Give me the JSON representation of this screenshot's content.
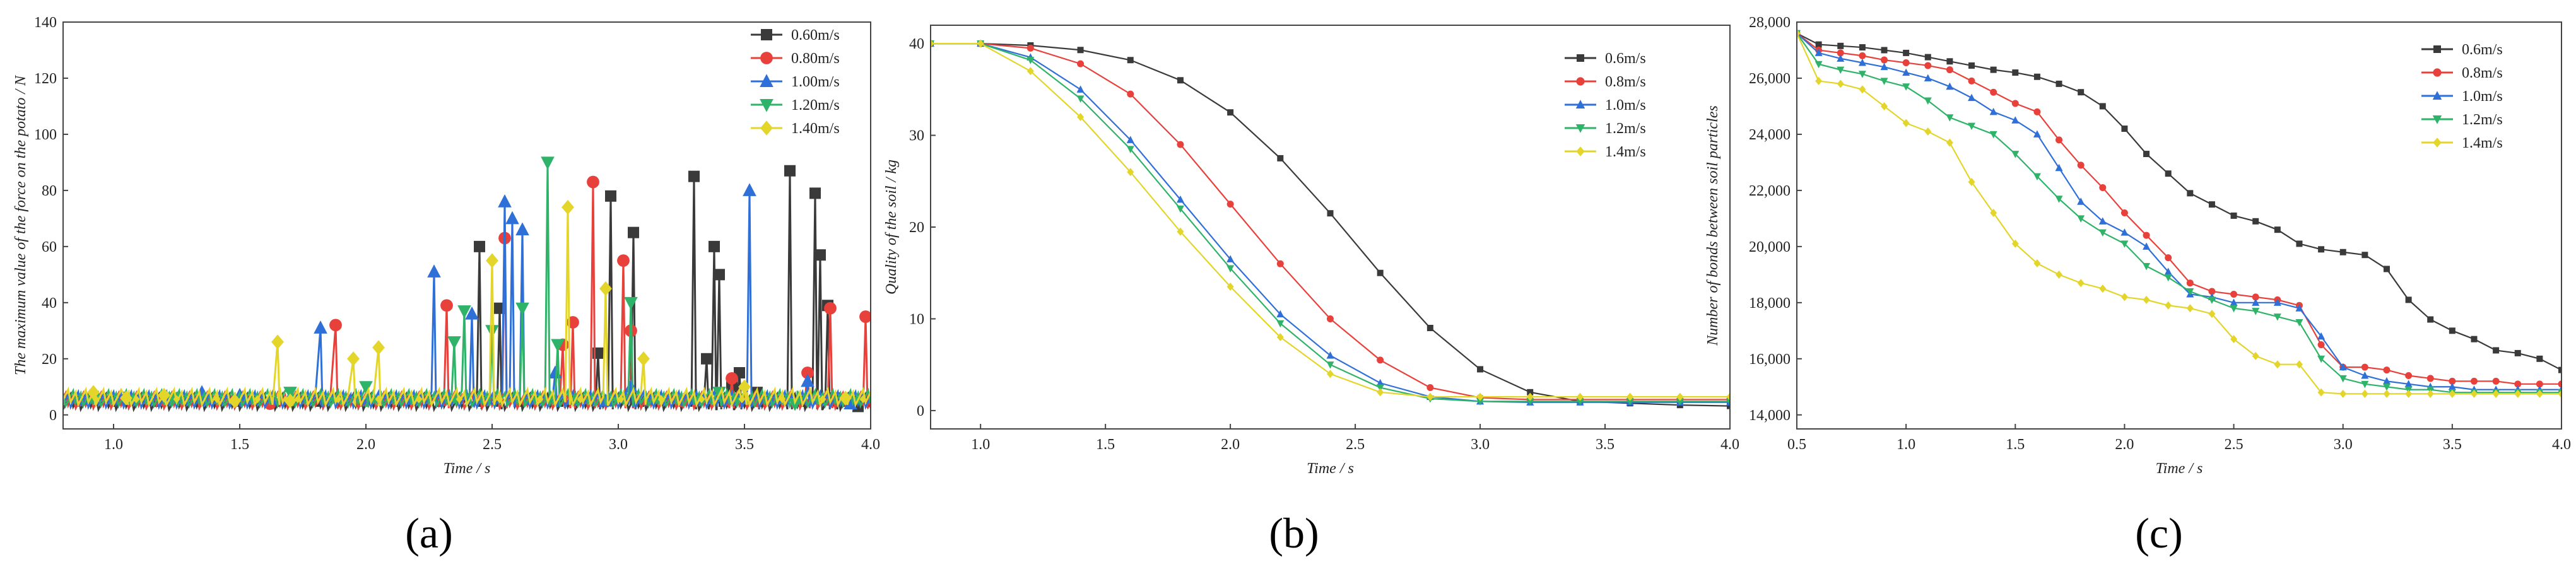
{
  "chart_data": [
    {
      "type": "line",
      "panel_label": "(a)",
      "xlabel": "Time / s",
      "ylabel": "The maximum value of the force on the potato / N",
      "xlim": [
        0.8,
        4.0
      ],
      "ylim": [
        -5,
        140
      ],
      "xticks": [
        1.0,
        1.5,
        2.0,
        2.5,
        3.0,
        3.5,
        4.0
      ],
      "yticks": [
        0,
        20,
        40,
        60,
        80,
        100,
        120,
        140
      ],
      "grid": false,
      "legend_position": "top-right",
      "series": [
        {
          "name": "0.60m/s",
          "color": "#3a3a3a",
          "marker": "square",
          "peaks": [
            [
              2.45,
              60
            ],
            [
              2.53,
              38
            ],
            [
              2.92,
              22
            ],
            [
              2.97,
              78
            ],
            [
              3.06,
              65
            ],
            [
              3.3,
              85
            ],
            [
              3.35,
              20
            ],
            [
              3.38,
              60
            ],
            [
              3.4,
              50
            ],
            [
              3.45,
              10
            ],
            [
              3.48,
              15
            ],
            [
              3.55,
              8
            ],
            [
              3.68,
              87
            ],
            [
              3.78,
              79
            ],
            [
              3.8,
              57
            ],
            [
              3.83,
              39
            ],
            [
              3.86,
              6
            ],
            [
              3.95,
              3
            ]
          ]
        },
        {
          "name": "0.80m/s",
          "color": "#e8403a",
          "marker": "circle",
          "peaks": [
            [
              1.62,
              4
            ],
            [
              1.88,
              32
            ],
            [
              2.32,
              39
            ],
            [
              2.55,
              63
            ],
            [
              2.78,
              25
            ],
            [
              2.82,
              33
            ],
            [
              2.9,
              83
            ],
            [
              3.02,
              55
            ],
            [
              3.05,
              30
            ],
            [
              3.25,
              5
            ],
            [
              3.45,
              13
            ],
            [
              3.55,
              5
            ],
            [
              3.75,
              15
            ],
            [
              3.84,
              38
            ],
            [
              3.98,
              35
            ]
          ]
        },
        {
          "name": "1.00m/s",
          "color": "#2f6fd8",
          "marker": "triangle-up",
          "peaks": [
            [
              1.35,
              8
            ],
            [
              1.5,
              7
            ],
            [
              1.82,
              31
            ],
            [
              2.27,
              51
            ],
            [
              2.42,
              36
            ],
            [
              2.55,
              76
            ],
            [
              2.58,
              70
            ],
            [
              2.62,
              66
            ],
            [
              2.75,
              15
            ],
            [
              2.95,
              5
            ],
            [
              3.05,
              10
            ],
            [
              3.52,
              80
            ],
            [
              3.75,
              12
            ],
            [
              3.92,
              4
            ]
          ]
        },
        {
          "name": "1.20m/s",
          "color": "#2eb369",
          "marker": "triangle-down",
          "peaks": [
            [
              1.25,
              6
            ],
            [
              1.7,
              8
            ],
            [
              2.0,
              10
            ],
            [
              2.35,
              26
            ],
            [
              2.39,
              37
            ],
            [
              2.5,
              30
            ],
            [
              2.62,
              38
            ],
            [
              2.72,
              90
            ],
            [
              2.76,
              25
            ],
            [
              3.05,
              40
            ],
            [
              3.4,
              8
            ],
            [
              3.7,
              4
            ]
          ]
        },
        {
          "name": "1.40m/s",
          "color": "#e3d52a",
          "marker": "diamond",
          "peaks": [
            [
              0.92,
              8
            ],
            [
              1.05,
              6
            ],
            [
              1.2,
              7
            ],
            [
              1.48,
              5
            ],
            [
              1.65,
              26
            ],
            [
              1.7,
              5
            ],
            [
              1.95,
              20
            ],
            [
              2.05,
              24
            ],
            [
              2.5,
              55
            ],
            [
              2.8,
              74
            ],
            [
              2.95,
              45
            ],
            [
              3.1,
              20
            ],
            [
              3.5,
              10
            ],
            [
              3.9,
              6
            ]
          ]
        }
      ]
    },
    {
      "type": "line",
      "panel_label": "(b)",
      "xlabel": "Time / s",
      "ylabel": "Quality of the soil / kg",
      "xlim": [
        0.8,
        4.0
      ],
      "ylim": [
        -2,
        42
      ],
      "xticks": [
        1.0,
        1.5,
        2.0,
        2.5,
        3.0,
        3.5,
        4.0
      ],
      "yticks": [
        0,
        10,
        20,
        30,
        40
      ],
      "grid": false,
      "legend_position": "top-right",
      "series": [
        {
          "name": "0.6m/s",
          "color": "#3a3a3a",
          "marker": "square",
          "x": [
            0.8,
            1.0,
            1.2,
            1.4,
            1.6,
            1.8,
            2.0,
            2.2,
            2.4,
            2.6,
            2.8,
            3.0,
            3.2,
            3.4,
            3.6,
            3.8,
            4.0
          ],
          "y": [
            40,
            40,
            39.8,
            39.3,
            38.2,
            36.0,
            32.5,
            27.5,
            21.5,
            15.0,
            9.0,
            4.5,
            2.0,
            1.0,
            0.8,
            0.6,
            0.5
          ]
        },
        {
          "name": "0.8m/s",
          "color": "#e8403a",
          "marker": "circle",
          "x": [
            0.8,
            1.0,
            1.2,
            1.4,
            1.6,
            1.8,
            2.0,
            2.2,
            2.4,
            2.6,
            2.8,
            3.0,
            3.2,
            3.4,
            3.6,
            3.8,
            4.0
          ],
          "y": [
            40,
            40,
            39.5,
            37.8,
            34.5,
            29.0,
            22.5,
            16.0,
            10.0,
            5.5,
            2.5,
            1.4,
            1.2,
            1.2,
            1.2,
            1.2,
            1.2
          ]
        },
        {
          "name": "1.0m/s",
          "color": "#2f6fd8",
          "marker": "triangle-up",
          "x": [
            0.8,
            1.0,
            1.2,
            1.4,
            1.6,
            1.8,
            2.0,
            2.2,
            2.4,
            2.6,
            2.8,
            3.0,
            3.2,
            3.4,
            3.6,
            3.8,
            4.0
          ],
          "y": [
            40,
            40,
            38.5,
            35.0,
            29.5,
            23.0,
            16.5,
            10.5,
            6.0,
            3.0,
            1.5,
            1.0,
            0.9,
            0.9,
            0.9,
            0.9,
            0.9
          ]
        },
        {
          "name": "1.2m/s",
          "color": "#2eb369",
          "marker": "triangle-down",
          "x": [
            0.8,
            1.0,
            1.2,
            1.4,
            1.6,
            1.8,
            2.0,
            2.2,
            2.4,
            2.6,
            2.8,
            3.0,
            3.2,
            3.4,
            3.6,
            3.8,
            4.0
          ],
          "y": [
            40,
            40,
            38.2,
            34.0,
            28.5,
            22.0,
            15.5,
            9.5,
            5.0,
            2.5,
            1.3,
            1.0,
            1.0,
            1.0,
            1.0,
            1.0,
            1.0
          ]
        },
        {
          "name": "1.4m/s",
          "color": "#e3d52a",
          "marker": "diamond",
          "x": [
            0.8,
            1.0,
            1.2,
            1.4,
            1.6,
            1.8,
            2.0,
            2.2,
            2.4,
            2.6,
            2.8,
            3.0,
            3.2,
            3.4,
            3.6,
            3.8,
            4.0
          ],
          "y": [
            40,
            40,
            37.0,
            32.0,
            26.0,
            19.5,
            13.5,
            8.0,
            4.0,
            2.0,
            1.5,
            1.5,
            1.5,
            1.5,
            1.5,
            1.5,
            1.5
          ]
        }
      ]
    },
    {
      "type": "line",
      "panel_label": "(c)",
      "xlabel": "Time / s",
      "ylabel": "Number of bonds between soil particles",
      "xlim": [
        0.5,
        4.0
      ],
      "ylim": [
        13500,
        28000
      ],
      "xticks": [
        0.5,
        1.0,
        1.5,
        2.0,
        2.5,
        3.0,
        3.5,
        4.0
      ],
      "xtick_labels": [
        "0.5",
        "1.0",
        "1.5",
        "2.0",
        "2.5",
        "3.0",
        "3.5",
        "4.0"
      ],
      "yticks": [
        14000,
        16000,
        18000,
        20000,
        22000,
        24000,
        26000,
        28000
      ],
      "ytick_labels": [
        "14,000",
        "16,000",
        "18,000",
        "20,000",
        "22,000",
        "24,000",
        "26,000",
        "28,000"
      ],
      "grid": false,
      "legend_position": "top-right",
      "series": [
        {
          "name": "0.6m/s",
          "color": "#3a3a3a",
          "marker": "square",
          "x": [
            0.5,
            0.6,
            0.7,
            0.8,
            0.9,
            1.0,
            1.1,
            1.2,
            1.3,
            1.4,
            1.5,
            1.6,
            1.7,
            1.8,
            1.9,
            2.0,
            2.1,
            2.2,
            2.3,
            2.4,
            2.5,
            2.6,
            2.7,
            2.8,
            2.9,
            3.0,
            3.1,
            3.2,
            3.3,
            3.4,
            3.5,
            3.6,
            3.7,
            3.8,
            3.9,
            4.0
          ],
          "y": [
            27600,
            27200,
            27150,
            27100,
            27000,
            26900,
            26750,
            26600,
            26450,
            26300,
            26200,
            26050,
            25800,
            25500,
            25000,
            24200,
            23300,
            22600,
            21900,
            21500,
            21100,
            20900,
            20600,
            20100,
            19900,
            19800,
            19700,
            19200,
            18100,
            17400,
            17000,
            16700,
            16300,
            16200,
            16000,
            15600
          ]
        },
        {
          "name": "0.8m/s",
          "color": "#e8403a",
          "marker": "circle",
          "x": [
            0.5,
            0.6,
            0.7,
            0.8,
            0.9,
            1.0,
            1.1,
            1.2,
            1.3,
            1.4,
            1.5,
            1.6,
            1.7,
            1.8,
            1.9,
            2.0,
            2.1,
            2.2,
            2.3,
            2.4,
            2.5,
            2.6,
            2.7,
            2.8,
            2.9,
            3.0,
            3.1,
            3.2,
            3.3,
            3.4,
            3.5,
            3.6,
            3.7,
            3.8,
            3.9,
            4.0
          ],
          "y": [
            27600,
            27000,
            26900,
            26800,
            26650,
            26550,
            26450,
            26300,
            25900,
            25500,
            25100,
            24800,
            23800,
            22900,
            22100,
            21200,
            20400,
            19600,
            18700,
            18400,
            18300,
            18200,
            18100,
            17900,
            16500,
            15700,
            15700,
            15600,
            15400,
            15300,
            15200,
            15200,
            15200,
            15100,
            15100,
            15100
          ]
        },
        {
          "name": "1.0m/s",
          "color": "#2f6fd8",
          "marker": "triangle-up",
          "x": [
            0.5,
            0.6,
            0.7,
            0.8,
            0.9,
            1.0,
            1.1,
            1.2,
            1.3,
            1.4,
            1.5,
            1.6,
            1.7,
            1.8,
            1.9,
            2.0,
            2.1,
            2.2,
            2.3,
            2.4,
            2.5,
            2.6,
            2.7,
            2.8,
            2.9,
            3.0,
            3.1,
            3.2,
            3.3,
            3.4,
            3.5,
            3.6,
            3.7,
            3.8,
            3.9,
            4.0
          ],
          "y": [
            27600,
            26900,
            26700,
            26550,
            26400,
            26200,
            26000,
            25700,
            25300,
            24800,
            24500,
            24000,
            22800,
            21600,
            20900,
            20500,
            20000,
            19100,
            18300,
            18200,
            18000,
            18000,
            18000,
            17800,
            16800,
            15700,
            15400,
            15200,
            15100,
            15000,
            15000,
            14900,
            14900,
            14900,
            14900,
            14900
          ]
        },
        {
          "name": "1.2m/s",
          "color": "#2eb369",
          "marker": "triangle-down",
          "x": [
            0.5,
            0.6,
            0.7,
            0.8,
            0.9,
            1.0,
            1.1,
            1.2,
            1.3,
            1.4,
            1.5,
            1.6,
            1.7,
            1.8,
            1.9,
            2.0,
            2.1,
            2.2,
            2.3,
            2.4,
            2.5,
            2.6,
            2.7,
            2.8,
            2.9,
            3.0,
            3.1,
            3.2,
            3.3,
            3.4,
            3.5,
            3.6,
            3.7,
            3.8,
            3.9,
            4.0
          ],
          "y": [
            27600,
            26500,
            26300,
            26150,
            25900,
            25700,
            25200,
            24600,
            24300,
            24000,
            23300,
            22500,
            21700,
            21000,
            20500,
            20100,
            19300,
            18900,
            18400,
            18100,
            17800,
            17700,
            17500,
            17300,
            16000,
            15300,
            15100,
            15000,
            14900,
            14900,
            14800,
            14800,
            14800,
            14800,
            14800,
            14800
          ]
        },
        {
          "name": "1.4m/s",
          "color": "#e3d52a",
          "marker": "diamond",
          "x": [
            0.5,
            0.6,
            0.7,
            0.8,
            0.9,
            1.0,
            1.1,
            1.2,
            1.3,
            1.4,
            1.5,
            1.6,
            1.7,
            1.8,
            1.9,
            2.0,
            2.1,
            2.2,
            2.3,
            2.4,
            2.5,
            2.6,
            2.7,
            2.8,
            2.9,
            3.0,
            3.1,
            3.2,
            3.3,
            3.4,
            3.5,
            3.6,
            3.7,
            3.8,
            3.9,
            4.0
          ],
          "y": [
            27600,
            25900,
            25800,
            25600,
            25000,
            24400,
            24100,
            23700,
            22300,
            21200,
            20100,
            19400,
            19000,
            18700,
            18500,
            18200,
            18100,
            17900,
            17800,
            17600,
            16700,
            16100,
            15800,
            15800,
            14800,
            14750,
            14750,
            14750,
            14750,
            14750,
            14750,
            14750,
            14750,
            14750,
            14750,
            14750
          ]
        }
      ]
    }
  ]
}
